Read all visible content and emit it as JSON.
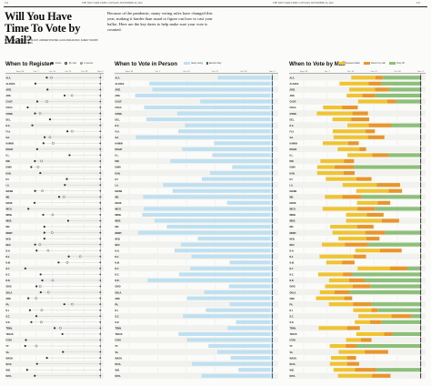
{
  "folio": {
    "left_page": "P14",
    "left_line": "THE NEW YORK TIMES, TUESDAY, SEPTEMBER 29, 2020",
    "right_line": "THE NEW YORK TIMES, TUESDAY, SEPTEMBER 29, 2020",
    "right_page": "P15"
  },
  "headline": "Will You Have Time To Vote by Mail?",
  "byline": "BY DENISE LU, MATTHEW BLOCH, ANDREW FISCHER, ALICIA PARLAPIANO, KAREN YOURISH AND THE NEW YORK TIMES",
  "intro": "Because of the pandemic, many voting rules have changed this year, making it harder than usual to figure out how to cast your ballot. Here are the key dates to help make sure your vote is counted.",
  "sections": [
    {
      "title": "When to Register",
      "legend": [
        "Online",
        "By mail",
        "In person"
      ]
    },
    {
      "title": "When to Vote in Person",
      "legend": [
        "Early voting",
        "Election Day"
      ]
    },
    {
      "title": "When to Vote by Mail",
      "legend": [
        "Request ballot",
        "Return by mail",
        "Drop off"
      ]
    }
  ],
  "colors": {
    "early_voting": "#bfe0f1",
    "election_day_line": "#2b6fa8",
    "request": "#f0c330",
    "return": "#e8952a",
    "dropoff": "#8cc07a",
    "register_line": "#333333"
  },
  "axis_ticks": [
    "Sept. 30",
    "Oct. 7",
    "Oct. 14",
    "Oct. 21",
    "Oct. 28",
    "Nov. 3"
  ],
  "states": [
    "ALA.",
    "ALASKA",
    "ARIZ.",
    "ARK.",
    "CALIF.",
    "COLO.",
    "CONN.",
    "DEL.",
    "D.C.",
    "FLA.",
    "GA.",
    "HAWAII",
    "IDAHO",
    "ILL.",
    "IND.",
    "IOWA",
    "KAN.",
    "KY.",
    "LA.",
    "MAINE",
    "MD.",
    "MASS.",
    "MICH.",
    "MINN.",
    "MISS.",
    "MO.",
    "MONT.",
    "NEB.",
    "NEV.",
    "N.H.",
    "N.J.",
    "N.M.",
    "N.Y.",
    "N.C.",
    "N.D.",
    "OHIO",
    "OKLA.",
    "ORE.",
    "PA.",
    "R.I.",
    "S.C.",
    "S.D.",
    "TENN.",
    "TEXAS",
    "UTAH",
    "VT.",
    "VA.",
    "WASH.",
    "W.VA.",
    "WIS.",
    "WYO."
  ]
}
